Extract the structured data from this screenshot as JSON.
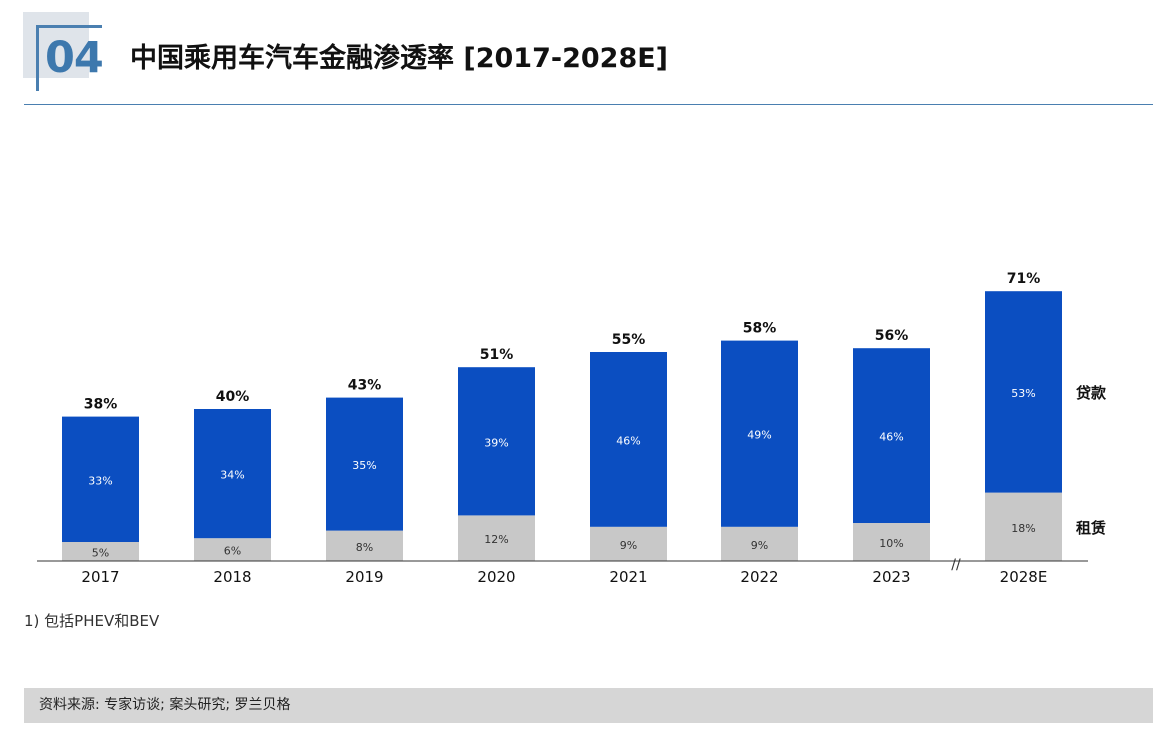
{
  "header": {
    "section_number": "04",
    "title": "中国乘用车汽车金融渗透率 [2017-2028E]"
  },
  "chart_data": {
    "type": "bar",
    "stacked": true,
    "categories": [
      "2017",
      "2018",
      "2019",
      "2020",
      "2021",
      "2022",
      "2023",
      "2028E"
    ],
    "series": [
      {
        "name": "租赁",
        "values": [
          5,
          6,
          8,
          12,
          9,
          9,
          10,
          18
        ],
        "labels": [
          "5%",
          "6%",
          "8%",
          "12%",
          "9%",
          "9%",
          "10%",
          "18%"
        ],
        "color": "#c8c8c8"
      },
      {
        "name": "贷款",
        "values": [
          33,
          34,
          35,
          39,
          46,
          49,
          46,
          53
        ],
        "labels": [
          "33%",
          "34%",
          "35%",
          "39%",
          "46%",
          "49%",
          "46%",
          "53%"
        ],
        "color": "#0b4ec1"
      }
    ],
    "totals": [
      38,
      40,
      43,
      51,
      55,
      58,
      56,
      71
    ],
    "total_labels": [
      "38%",
      "40%",
      "43%",
      "51%",
      "55%",
      "58%",
      "56%",
      "71%"
    ],
    "axis_break_marker": "//",
    "legend_placement": "right, labels beside last bar",
    "ylim": [
      0,
      71
    ],
    "grid": false
  },
  "footnote": "1) 包括PHEV和BEV",
  "source": "资料来源: 专家访谈; 案头研究; 罗兰贝格"
}
